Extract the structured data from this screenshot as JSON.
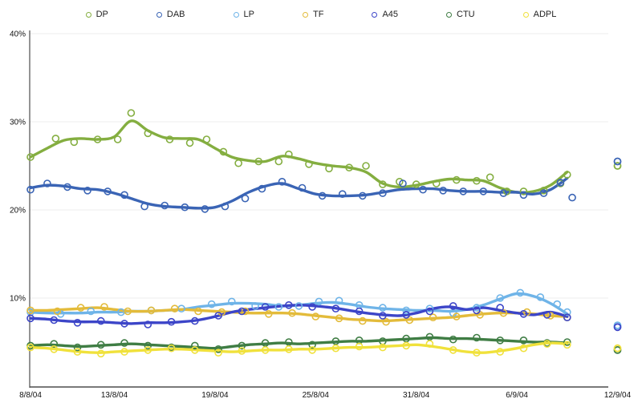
{
  "legend": {
    "items": [
      {
        "label": "DP",
        "color": "#84ae40"
      },
      {
        "label": "DAB",
        "color": "#3a64b5"
      },
      {
        "label": "LP",
        "color": "#6fb4e8"
      },
      {
        "label": "TF",
        "color": "#e3bb3a"
      },
      {
        "label": "A45",
        "color": "#3c45c8"
      },
      {
        "label": "CTU",
        "color": "#3f7d44"
      },
      {
        "label": "ADPL",
        "color": "#f0e13b"
      }
    ]
  },
  "chart_data": {
    "type": "line",
    "title": "",
    "xlabel": "",
    "ylabel": "",
    "ylim": [
      0,
      40
    ],
    "grid": true,
    "legend_position": "top",
    "y_ticks": [
      {
        "label": "40%",
        "value": 40
      },
      {
        "label": "30%",
        "value": 30
      },
      {
        "label": "20%",
        "value": 20
      },
      {
        "label": "10%",
        "value": 10
      }
    ],
    "x_ticks": [
      {
        "label": "8/8/04",
        "day": 0
      },
      {
        "label": "13/8/04",
        "day": 5
      },
      {
        "label": "19/8/04",
        "day": 11
      },
      {
        "label": "25/8/04",
        "day": 17
      },
      {
        "label": "31/8/04",
        "day": 23
      },
      {
        "label": "6/9/04",
        "day": 29
      },
      {
        "label": "12/9/04",
        "day": 35
      }
    ],
    "line_dates": [
      "8/8",
      "9/8",
      "10/8",
      "11/8",
      "12/8",
      "13/8",
      "14/8",
      "15/8",
      "16/8",
      "17/8",
      "18/8",
      "19/8",
      "20/8",
      "21/8",
      "22/8",
      "23/8",
      "24/8",
      "25/8",
      "26/8",
      "27/8",
      "28/8",
      "29/8",
      "30/8",
      "31/8",
      "1/9",
      "2/9",
      "3/9",
      "4/9",
      "5/9",
      "6/9",
      "7/9",
      "8/9",
      "9/9"
    ],
    "final_date": "12/9/04",
    "final_day": 35,
    "series": [
      {
        "name": "DP",
        "color": "#84ae40",
        "line": [
          26.0,
          27.0,
          27.9,
          28.1,
          28.0,
          28.3,
          30.1,
          29.0,
          28.2,
          28.1,
          28.0,
          27.0,
          26.0,
          25.6,
          25.5,
          26.1,
          25.8,
          25.3,
          25.0,
          24.8,
          24.3,
          23.0,
          22.6,
          22.8,
          23.2,
          23.5,
          23.4,
          23.3,
          22.5,
          22.0,
          22.1,
          22.8,
          24.3
        ],
        "scatter": [
          [
            0,
            26.0
          ],
          [
            1.5,
            28.1
          ],
          [
            2.6,
            27.7
          ],
          [
            4,
            28.0
          ],
          [
            5.2,
            28.0
          ],
          [
            6,
            31.0
          ],
          [
            7,
            28.7
          ],
          [
            8.3,
            28.0
          ],
          [
            9.5,
            27.6
          ],
          [
            10.5,
            28.0
          ],
          [
            11.5,
            26.6
          ],
          [
            12.4,
            25.3
          ],
          [
            13.6,
            25.5
          ],
          [
            14.8,
            25.5
          ],
          [
            15.4,
            26.3
          ],
          [
            16.6,
            25.2
          ],
          [
            17.8,
            24.7
          ],
          [
            19,
            24.8
          ],
          [
            20,
            25.0
          ],
          [
            21,
            22.9
          ],
          [
            22,
            23.2
          ],
          [
            23,
            22.9
          ],
          [
            24.2,
            23.0
          ],
          [
            25.4,
            23.4
          ],
          [
            26.6,
            23.3
          ],
          [
            27.4,
            23.7
          ],
          [
            28.4,
            22.1
          ],
          [
            29.4,
            22.1
          ],
          [
            30.6,
            22.2
          ],
          [
            31.6,
            23.0
          ],
          [
            32,
            24.0
          ]
        ],
        "final_value": 25.0
      },
      {
        "name": "DAB",
        "color": "#3a64b5",
        "line": [
          22.5,
          22.8,
          22.7,
          22.4,
          22.3,
          21.9,
          21.3,
          20.7,
          20.4,
          20.3,
          20.2,
          20.3,
          21.0,
          22.0,
          22.7,
          23.0,
          22.4,
          21.8,
          21.6,
          21.6,
          21.7,
          22.0,
          22.3,
          22.4,
          22.4,
          22.2,
          22.1,
          22.1,
          22.0,
          22.0,
          21.8,
          22.3,
          23.6
        ],
        "scatter": [
          [
            0,
            22.3
          ],
          [
            1,
            23.0
          ],
          [
            2.2,
            22.6
          ],
          [
            3.4,
            22.2
          ],
          [
            4.6,
            22.1
          ],
          [
            5.6,
            21.7
          ],
          [
            6.8,
            20.4
          ],
          [
            8,
            20.5
          ],
          [
            9.2,
            20.3
          ],
          [
            10.4,
            20.1
          ],
          [
            11.6,
            20.4
          ],
          [
            12.8,
            21.3
          ],
          [
            13.8,
            22.4
          ],
          [
            15,
            23.2
          ],
          [
            16.2,
            22.5
          ],
          [
            17.4,
            21.6
          ],
          [
            18.6,
            21.8
          ],
          [
            19.8,
            21.6
          ],
          [
            21,
            21.9
          ],
          [
            22.2,
            23.0
          ],
          [
            23.4,
            22.3
          ],
          [
            24.6,
            22.2
          ],
          [
            25.8,
            22.1
          ],
          [
            27,
            22.1
          ],
          [
            28.2,
            21.9
          ],
          [
            29.4,
            21.7
          ],
          [
            30.6,
            21.9
          ],
          [
            31.6,
            23.1
          ],
          [
            32.3,
            21.4
          ]
        ],
        "final_value": 25.5
      },
      {
        "name": "LP",
        "color": "#6fb4e8",
        "line": [
          8.4,
          8.3,
          8.3,
          8.3,
          8.4,
          8.4,
          8.5,
          8.5,
          8.6,
          8.7,
          9.0,
          9.2,
          9.4,
          9.4,
          9.3,
          9.1,
          9.2,
          9.4,
          9.5,
          9.3,
          9.0,
          8.8,
          8.7,
          8.6,
          8.6,
          8.5,
          8.7,
          9.2,
          9.9,
          10.5,
          10.2,
          9.4,
          8.2
        ],
        "scatter": [
          [
            0,
            8.4
          ],
          [
            1.8,
            8.2
          ],
          [
            3.6,
            8.5
          ],
          [
            5.4,
            8.4
          ],
          [
            7.2,
            8.6
          ],
          [
            9,
            8.8
          ],
          [
            10.8,
            9.3
          ],
          [
            12,
            9.6
          ],
          [
            13.4,
            9.1
          ],
          [
            14.8,
            9.0
          ],
          [
            16,
            9.1
          ],
          [
            17.2,
            9.6
          ],
          [
            18.4,
            9.7
          ],
          [
            19.6,
            9.2
          ],
          [
            21,
            8.9
          ],
          [
            22.4,
            8.6
          ],
          [
            23.8,
            8.8
          ],
          [
            25.2,
            8.3
          ],
          [
            26.6,
            8.9
          ],
          [
            28,
            10.0
          ],
          [
            29.2,
            10.6
          ],
          [
            30.4,
            10.1
          ],
          [
            31.4,
            9.3
          ],
          [
            32,
            8.4
          ]
        ],
        "final_value": 6.9
      },
      {
        "name": "TF",
        "color": "#e3bb3a",
        "line": [
          8.6,
          8.6,
          8.7,
          8.8,
          8.9,
          8.7,
          8.5,
          8.5,
          8.6,
          8.7,
          8.6,
          8.5,
          8.4,
          8.3,
          8.3,
          8.3,
          8.2,
          8.0,
          7.8,
          7.6,
          7.5,
          7.4,
          7.5,
          7.6,
          7.7,
          7.8,
          8.0,
          8.2,
          8.3,
          8.3,
          8.2,
          8.0,
          7.9
        ],
        "scatter": [
          [
            0,
            8.6
          ],
          [
            1.6,
            8.5
          ],
          [
            3,
            8.9
          ],
          [
            4.4,
            9.0
          ],
          [
            5.8,
            8.5
          ],
          [
            7.2,
            8.6
          ],
          [
            8.6,
            8.8
          ],
          [
            10,
            8.5
          ],
          [
            11.4,
            8.4
          ],
          [
            12.8,
            8.5
          ],
          [
            14.2,
            8.2
          ],
          [
            15.6,
            8.3
          ],
          [
            17,
            7.9
          ],
          [
            18.4,
            7.7
          ],
          [
            19.8,
            7.4
          ],
          [
            21.2,
            7.3
          ],
          [
            22.6,
            7.5
          ],
          [
            24,
            7.8
          ],
          [
            25.4,
            7.9
          ],
          [
            26.8,
            8.1
          ],
          [
            28.2,
            8.3
          ],
          [
            29.6,
            8.4
          ],
          [
            31,
            8.0
          ],
          [
            32,
            7.8
          ]
        ],
        "final_value": null
      },
      {
        "name": "A45",
        "color": "#3c45c8",
        "line": [
          7.7,
          7.6,
          7.4,
          7.3,
          7.3,
          7.2,
          7.1,
          7.2,
          7.2,
          7.3,
          7.5,
          7.9,
          8.4,
          8.7,
          8.9,
          9.1,
          9.2,
          9.1,
          8.9,
          8.6,
          8.3,
          8.1,
          8.0,
          8.3,
          8.8,
          9.0,
          8.7,
          8.9,
          8.6,
          8.3,
          8.1,
          8.4,
          7.9
        ],
        "scatter": [
          [
            0,
            7.7
          ],
          [
            1.4,
            7.5
          ],
          [
            2.8,
            7.2
          ],
          [
            4.2,
            7.4
          ],
          [
            5.6,
            7.1
          ],
          [
            7,
            7.0
          ],
          [
            8.4,
            7.3
          ],
          [
            9.8,
            7.4
          ],
          [
            11.2,
            8.0
          ],
          [
            12.6,
            8.5
          ],
          [
            14,
            9.0
          ],
          [
            15.4,
            9.2
          ],
          [
            16.8,
            9.0
          ],
          [
            18.2,
            8.8
          ],
          [
            19.6,
            8.5
          ],
          [
            21,
            8.0
          ],
          [
            22.4,
            8.1
          ],
          [
            23.8,
            8.5
          ],
          [
            25.2,
            9.1
          ],
          [
            26.6,
            8.6
          ],
          [
            28,
            8.9
          ],
          [
            29.4,
            8.2
          ],
          [
            30.8,
            8.1
          ],
          [
            32,
            7.8
          ]
        ],
        "final_value": 6.7
      },
      {
        "name": "CTU",
        "color": "#3f7d44",
        "line": [
          4.6,
          4.7,
          4.6,
          4.5,
          4.6,
          4.7,
          4.8,
          4.7,
          4.6,
          4.5,
          4.4,
          4.3,
          4.5,
          4.7,
          4.8,
          4.9,
          4.8,
          4.9,
          5.0,
          5.1,
          5.1,
          5.2,
          5.3,
          5.4,
          5.5,
          5.4,
          5.4,
          5.3,
          5.2,
          5.1,
          5.0,
          5.0,
          4.9
        ],
        "scatter": [
          [
            0,
            4.6
          ],
          [
            1.4,
            4.8
          ],
          [
            2.8,
            4.4
          ],
          [
            4.2,
            4.7
          ],
          [
            5.6,
            4.9
          ],
          [
            7,
            4.6
          ],
          [
            8.4,
            4.4
          ],
          [
            9.8,
            4.6
          ],
          [
            11.2,
            4.2
          ],
          [
            12.6,
            4.6
          ],
          [
            14,
            4.9
          ],
          [
            15.4,
            5.0
          ],
          [
            16.8,
            4.7
          ],
          [
            18.2,
            5.1
          ],
          [
            19.6,
            5.2
          ],
          [
            21,
            5.1
          ],
          [
            22.4,
            5.4
          ],
          [
            23.8,
            5.6
          ],
          [
            25.2,
            5.3
          ],
          [
            26.6,
            5.5
          ],
          [
            28,
            5.2
          ],
          [
            29.4,
            5.2
          ],
          [
            30.8,
            4.9
          ],
          [
            32,
            5.0
          ]
        ],
        "final_value": 4.1
      },
      {
        "name": "ADPL",
        "color": "#f0e13b",
        "line": [
          4.4,
          4.3,
          4.1,
          3.9,
          3.8,
          3.9,
          4.0,
          4.1,
          4.2,
          4.2,
          4.1,
          4.0,
          3.9,
          4.0,
          4.1,
          4.1,
          4.2,
          4.2,
          4.3,
          4.4,
          4.4,
          4.5,
          4.6,
          4.7,
          4.5,
          4.2,
          3.9,
          3.8,
          4.0,
          4.3,
          4.7,
          4.9,
          4.8
        ],
        "scatter": [
          [
            0,
            4.4
          ],
          [
            1.4,
            4.2
          ],
          [
            2.8,
            3.9
          ],
          [
            4.2,
            3.7
          ],
          [
            5.6,
            3.9
          ],
          [
            7,
            4.1
          ],
          [
            8.4,
            4.3
          ],
          [
            9.8,
            4.1
          ],
          [
            11.2,
            3.8
          ],
          [
            12.6,
            4.0
          ],
          [
            14,
            4.1
          ],
          [
            15.4,
            4.2
          ],
          [
            16.8,
            4.1
          ],
          [
            18.2,
            4.3
          ],
          [
            19.6,
            4.5
          ],
          [
            21,
            4.4
          ],
          [
            22.4,
            4.6
          ],
          [
            23.8,
            4.8
          ],
          [
            25.2,
            4.1
          ],
          [
            26.6,
            3.8
          ],
          [
            28,
            3.9
          ],
          [
            29.4,
            4.3
          ],
          [
            30.8,
            4.8
          ],
          [
            32,
            4.7
          ]
        ],
        "final_value": 4.3
      }
    ]
  }
}
